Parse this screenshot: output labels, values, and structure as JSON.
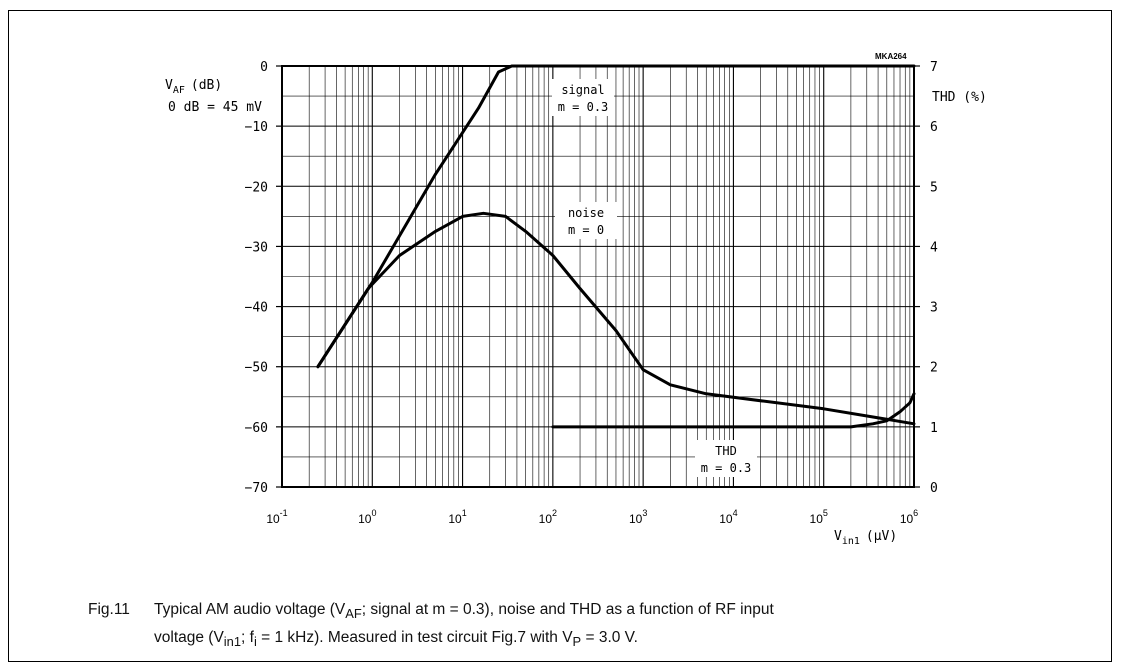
{
  "chart_data": {
    "type": "line",
    "code": "MKA264",
    "xaxis": {
      "scale": "log",
      "range": [
        0.1,
        1000000
      ],
      "label": "V",
      "label_sub": "in1",
      "label_unit": "(μV)",
      "ticks": [
        {
          "base": "10",
          "exp": "-1"
        },
        {
          "base": "10",
          "exp": "0"
        },
        {
          "base": "10",
          "exp": "1"
        },
        {
          "base": "10",
          "exp": "2"
        },
        {
          "base": "10",
          "exp": "3"
        },
        {
          "base": "10",
          "exp": "4"
        },
        {
          "base": "10",
          "exp": "5"
        },
        {
          "base": "10",
          "exp": "6"
        }
      ]
    },
    "yaxis_left": {
      "label": "V",
      "label_sub": "AF",
      "label_unit": "(dB)",
      "note": "0 dB = 45 mV",
      "range": [
        -70,
        0
      ],
      "ticks": [
        "0",
        "−10",
        "−20",
        "−30",
        "−40",
        "−50",
        "−60",
        "−70"
      ]
    },
    "yaxis_right": {
      "label": "THD (%)",
      "range": [
        0,
        7
      ],
      "ticks": [
        "7",
        "6",
        "5",
        "4",
        "3",
        "2",
        "1",
        "0"
      ]
    },
    "series": [
      {
        "axis": "left",
        "label_lines": [
          "signal",
          "m = 0.3"
        ],
        "points": [
          [
            0.25,
            -50
          ],
          [
            1,
            -36
          ],
          [
            5,
            -18
          ],
          [
            15,
            -7
          ],
          [
            25,
            -1
          ],
          [
            35,
            0
          ],
          [
            1000000,
            0
          ]
        ]
      },
      {
        "axis": "left",
        "label_lines": [
          "noise",
          "m = 0"
        ],
        "points": [
          [
            0.25,
            -50
          ],
          [
            0.9,
            -37
          ],
          [
            2,
            -31.5
          ],
          [
            5,
            -27.5
          ],
          [
            10,
            -25
          ],
          [
            17,
            -24.5
          ],
          [
            30,
            -25
          ],
          [
            50,
            -27.5
          ],
          [
            100,
            -31.5
          ],
          [
            200,
            -37
          ],
          [
            500,
            -44
          ],
          [
            1000,
            -50.5
          ],
          [
            2000,
            -53
          ],
          [
            5000,
            -54.5
          ],
          [
            100000,
            -57
          ],
          [
            1000000,
            -59.5
          ]
        ]
      },
      {
        "axis": "right",
        "label_lines": [
          "THD",
          "m = 0.3"
        ],
        "points": [
          [
            100,
            1
          ],
          [
            200000,
            1
          ],
          [
            350000,
            1.05
          ],
          [
            500000,
            1.1
          ],
          [
            700000,
            1.25
          ],
          [
            900000,
            1.4
          ],
          [
            1000000,
            1.55
          ]
        ]
      }
    ]
  },
  "caption": {
    "fig_label": "Fig.11",
    "line1_parts": [
      "Typical AM audio voltage (V",
      "AF",
      "; signal at m = 0.3), noise and THD as a function of RF input"
    ],
    "line2_parts": [
      "voltage (V",
      "in1",
      "; f",
      "i",
      " = 1 kHz). Measured in test circuit Fig.7 with V",
      "P",
      " = 3.0 V."
    ]
  }
}
